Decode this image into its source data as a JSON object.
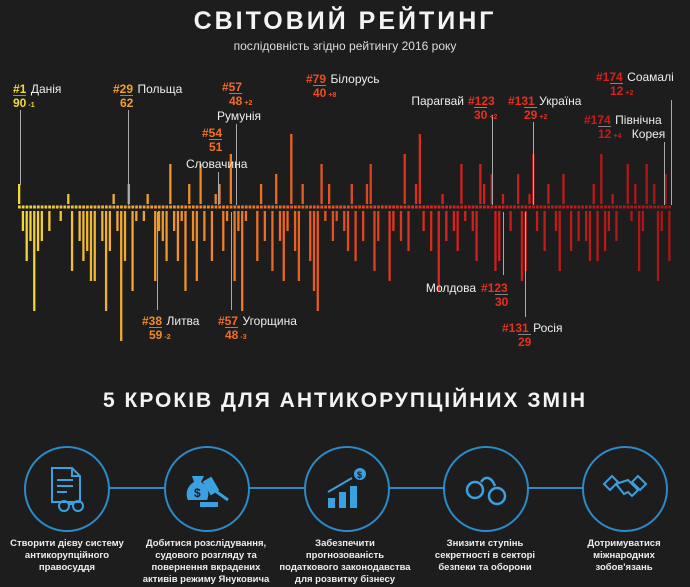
{
  "header": {
    "title": "СВІТОВИЙ РЕЙТИНГ",
    "subtitle": "послідовність згідно рейтингу 2016 року"
  },
  "chart_data": {
    "type": "bar",
    "title": "СВІТОВИЙ РЕЙТИНГ",
    "subtitle": "послідовність згідно рейтингу 2016 року",
    "description_units": "score change vs previous year (relative)",
    "colors": {
      "start": "#f2d83a",
      "mid": "#f07a26",
      "end": "#d8201c",
      "last": "#a81616"
    },
    "values": [
      2,
      -2,
      -5,
      -3,
      -10,
      -4,
      -3,
      0,
      -2,
      0,
      0,
      -1,
      0,
      1,
      -6,
      0,
      -3,
      -5,
      -4,
      -7,
      -7,
      0,
      -3,
      -10,
      -4,
      1,
      -2,
      -13,
      -5,
      2,
      -8,
      -1,
      0,
      -1,
      1,
      0,
      -7,
      -2,
      -3,
      -5,
      4,
      -2,
      -5,
      -1,
      -8,
      2,
      -3,
      -7,
      4,
      -3,
      0,
      -5,
      1,
      2,
      -4,
      -1,
      5,
      -7,
      -2,
      -10,
      -1,
      0,
      0,
      -5,
      2,
      -3,
      0,
      -6,
      3,
      -3,
      -7,
      -2,
      7,
      -4,
      -7,
      2,
      0,
      -5,
      -8,
      -10,
      4,
      -1,
      2,
      -3,
      -1,
      0,
      -2,
      -4,
      2,
      -5,
      0,
      -3,
      2,
      4,
      -6,
      -3,
      0,
      0,
      -7,
      -2,
      0,
      -3,
      5,
      -4,
      0,
      2,
      7,
      -2,
      0,
      -4,
      0,
      -8,
      1,
      -3,
      0,
      -2,
      -4,
      4,
      -1,
      0,
      -2,
      -5,
      4,
      2,
      0,
      3,
      -6,
      -5,
      1,
      0,
      -2,
      0,
      3,
      -7,
      -6,
      1,
      5,
      -2,
      0,
      -4,
      2,
      0,
      -2,
      -6,
      3,
      0,
      -4,
      0,
      -3,
      0,
      -3,
      -5,
      2,
      -5,
      5,
      -4,
      -2,
      1,
      -3,
      0,
      0,
      4,
      -1,
      2,
      -6,
      -2,
      4,
      0,
      2,
      -7,
      -2,
      3,
      -5
    ],
    "annotations": [
      {
        "rank": "#1",
        "country": "Данія",
        "score": "90",
        "delta": "-1"
      },
      {
        "rank": "#29",
        "country": "Польща",
        "score": "62",
        "delta": ""
      },
      {
        "rank": "#57",
        "country": "Румунія",
        "score": "48",
        "delta": "+2"
      },
      {
        "rank": "#54",
        "country": "Словачина",
        "score": "51",
        "delta": ""
      },
      {
        "rank": "#79",
        "country": "Білорусь",
        "score": "40",
        "delta": "+8"
      },
      {
        "rank": "#123",
        "country": "Парагвай",
        "score": "30",
        "delta": "+2"
      },
      {
        "rank": "#131",
        "country": "Україна",
        "score": "29",
        "delta": "+2"
      },
      {
        "rank": "#174",
        "country": "Соамалі",
        "score": "12",
        "delta": "+2"
      },
      {
        "rank": "#174",
        "country": "Північна",
        "country2": "Корея",
        "score": "12",
        "delta": "+4"
      },
      {
        "rank": "#38",
        "country": "Литва",
        "score": "59",
        "delta": "-2"
      },
      {
        "rank": "#57",
        "country": "Угорщина",
        "score": "48",
        "delta": "-3"
      },
      {
        "rank": "#123",
        "country": "Молдова",
        "score": "30",
        "delta": ""
      },
      {
        "rank": "#131",
        "country": "Росія",
        "score": "29",
        "delta": ""
      }
    ]
  },
  "steps": {
    "title": "5 КРОКІВ ДЛЯ АНТИКОРУПЦІЙНИХ ЗМІН",
    "accent": "#2a8bc8",
    "items": [
      {
        "icon": "document-handcuffs-icon",
        "text": "Створити дієву систему антикорупційного правосуддя"
      },
      {
        "icon": "money-bag-gavel-icon",
        "text": "Добитися розслідування, судового розгляду та повернення вкрадених активів режиму Януковича"
      },
      {
        "icon": "growth-chart-dollar-icon",
        "text": "Забезпечити прогнозованість податкового законодавства для розвитку бізнесу"
      },
      {
        "icon": "handcuffs-icon",
        "text": "Знизити ступінь секретності в секторі безпеки та оборони"
      },
      {
        "icon": "handshake-icon",
        "text": "Дотримуватися міжнародних зобов'язань"
      }
    ]
  }
}
